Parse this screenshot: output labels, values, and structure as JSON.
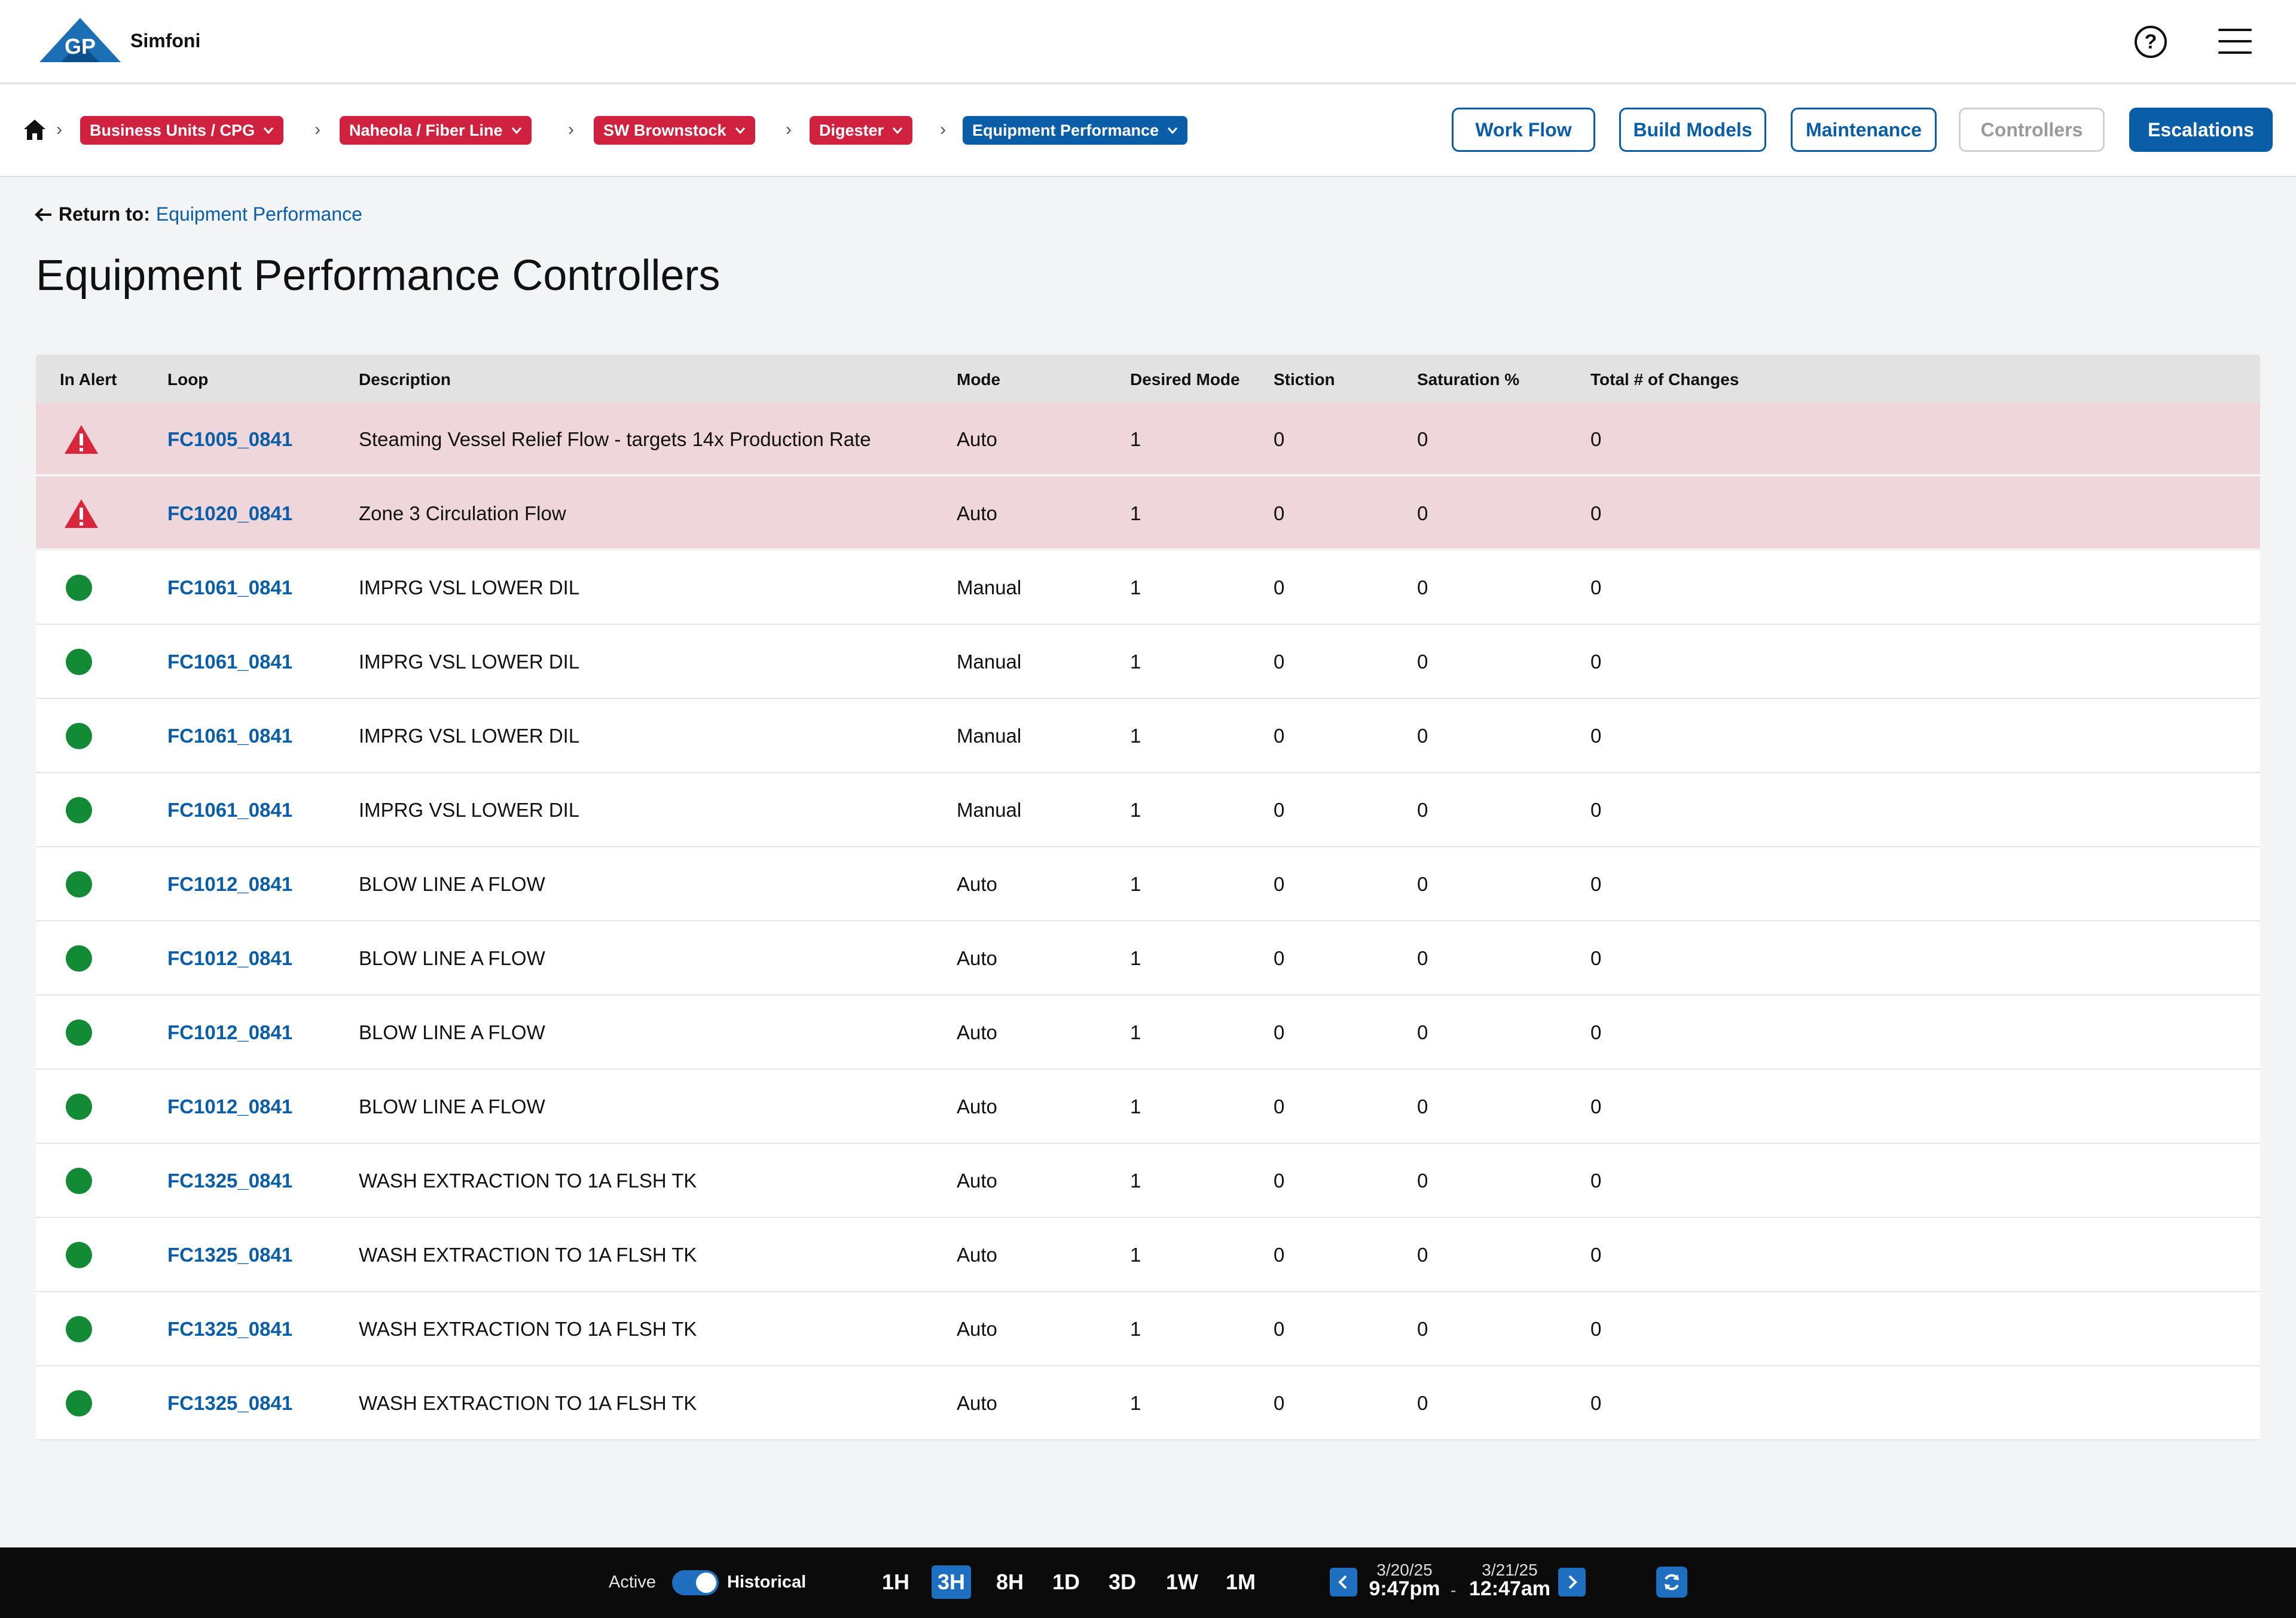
{
  "header": {
    "app_name": "Simfoni",
    "logo_text": "GP",
    "help_label": "?"
  },
  "breadcrumb": {
    "items": [
      {
        "label": "Business Units / CPG",
        "color": "#d0223e"
      },
      {
        "label": "Naheola / Fiber Line",
        "color": "#d0223e"
      },
      {
        "label": "SW Brownstock",
        "color": "#d0223e"
      },
      {
        "label": "Digester",
        "color": "#d0223e"
      },
      {
        "label": "Equipment Performance",
        "color": "#0a5ea8"
      }
    ]
  },
  "actions": {
    "work_flow": "Work Flow",
    "build_models": "Build Models",
    "maintenance": "Maintenance",
    "controllers": "Controllers",
    "escalations": "Escalations"
  },
  "return": {
    "label": "Return to:",
    "link": "Equipment Performance"
  },
  "page_title": "Equipment Performance Controllers",
  "table": {
    "columns": [
      "In Alert",
      "Loop",
      "Description",
      "Mode",
      "Desired Mode",
      "Stiction",
      "Saturation %",
      "Total # of Changes"
    ],
    "rows": [
      {
        "alert": true,
        "loop": "FC1005_0841",
        "description": "Steaming Vessel Relief Flow - targets 14x Production Rate",
        "mode": "Auto",
        "desired_mode": "1",
        "stiction": "0",
        "saturation": "0",
        "changes": "0"
      },
      {
        "alert": true,
        "loop": "FC1020_0841",
        "description": "Zone 3 Circulation Flow",
        "mode": "Auto",
        "desired_mode": "1",
        "stiction": "0",
        "saturation": "0",
        "changes": "0"
      },
      {
        "alert": false,
        "loop": "FC1061_0841",
        "description": "IMPRG VSL LOWER DIL",
        "mode": "Manual",
        "desired_mode": "1",
        "stiction": "0",
        "saturation": "0",
        "changes": "0"
      },
      {
        "alert": false,
        "loop": "FC1061_0841",
        "description": "IMPRG VSL LOWER DIL",
        "mode": "Manual",
        "desired_mode": "1",
        "stiction": "0",
        "saturation": "0",
        "changes": "0"
      },
      {
        "alert": false,
        "loop": "FC1061_0841",
        "description": "IMPRG VSL LOWER DIL",
        "mode": "Manual",
        "desired_mode": "1",
        "stiction": "0",
        "saturation": "0",
        "changes": "0"
      },
      {
        "alert": false,
        "loop": "FC1061_0841",
        "description": "IMPRG VSL LOWER DIL",
        "mode": "Manual",
        "desired_mode": "1",
        "stiction": "0",
        "saturation": "0",
        "changes": "0"
      },
      {
        "alert": false,
        "loop": "FC1012_0841",
        "description": "BLOW LINE A FLOW",
        "mode": "Auto",
        "desired_mode": "1",
        "stiction": "0",
        "saturation": "0",
        "changes": "0"
      },
      {
        "alert": false,
        "loop": "FC1012_0841",
        "description": "BLOW LINE A FLOW",
        "mode": "Auto",
        "desired_mode": "1",
        "stiction": "0",
        "saturation": "0",
        "changes": "0"
      },
      {
        "alert": false,
        "loop": "FC1012_0841",
        "description": "BLOW LINE A FLOW",
        "mode": "Auto",
        "desired_mode": "1",
        "stiction": "0",
        "saturation": "0",
        "changes": "0"
      },
      {
        "alert": false,
        "loop": "FC1012_0841",
        "description": "BLOW LINE A FLOW",
        "mode": "Auto",
        "desired_mode": "1",
        "stiction": "0",
        "saturation": "0",
        "changes": "0"
      },
      {
        "alert": false,
        "loop": "FC1325_0841",
        "description": "WASH EXTRACTION TO 1A FLSH TK",
        "mode": "Auto",
        "desired_mode": "1",
        "stiction": "0",
        "saturation": "0",
        "changes": "0"
      },
      {
        "alert": false,
        "loop": "FC1325_0841",
        "description": "WASH EXTRACTION TO 1A FLSH TK",
        "mode": "Auto",
        "desired_mode": "1",
        "stiction": "0",
        "saturation": "0",
        "changes": "0"
      },
      {
        "alert": false,
        "loop": "FC1325_0841",
        "description": "WASH EXTRACTION TO 1A FLSH TK",
        "mode": "Auto",
        "desired_mode": "1",
        "stiction": "0",
        "saturation": "0",
        "changes": "0"
      },
      {
        "alert": false,
        "loop": "FC1325_0841",
        "description": "WASH EXTRACTION TO 1A FLSH TK",
        "mode": "Auto",
        "desired_mode": "1",
        "stiction": "0",
        "saturation": "0",
        "changes": "0"
      }
    ]
  },
  "footer": {
    "active_label": "Active",
    "historical_label": "Historical",
    "historical_on": true,
    "ranges": [
      "1H",
      "3H",
      "8H",
      "1D",
      "3D",
      "1W",
      "1M"
    ],
    "selected_range": "3H",
    "start_date": "3/20/25",
    "start_time": "9:47pm",
    "separator": "-",
    "end_date": "3/21/25",
    "end_time": "12:47am"
  },
  "colors": {
    "brand_blue": "#0a5ea8",
    "breadcrumb_red": "#d0223e",
    "alert_row": "#efd6da",
    "ok_green": "#138a36",
    "alert_red": "#d9263c"
  }
}
